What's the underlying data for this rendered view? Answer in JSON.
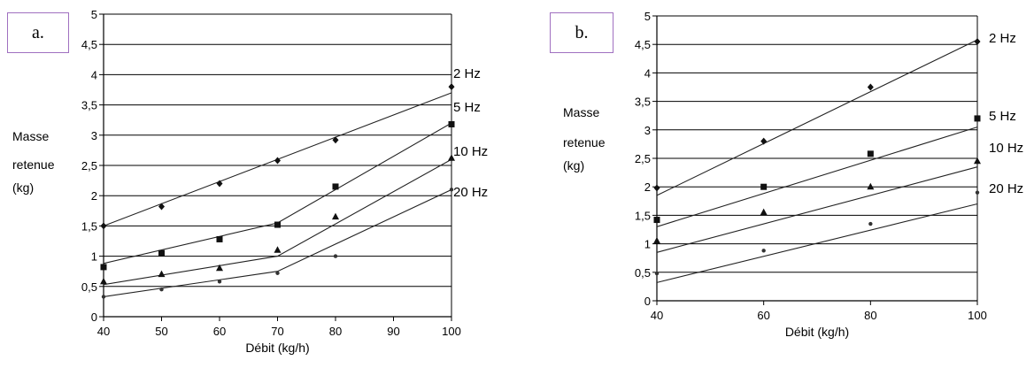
{
  "chart_data": [
    {
      "panel_label": "a.",
      "type": "line",
      "ylabel_lines": [
        "Masse",
        "retenue",
        "(kg)"
      ],
      "xlabel": "Débit (kg/h)",
      "xlim": [
        40,
        100
      ],
      "ylim": [
        0,
        5
      ],
      "xticks": [
        "40",
        "50",
        "60",
        "70",
        "80",
        "90",
        "100"
      ],
      "yticks": [
        "0",
        "0,5",
        "1",
        "1,5",
        "2",
        "2,5",
        "3",
        "3,5",
        "4",
        "4,5",
        "5"
      ],
      "grid": "horizontal",
      "series": [
        {
          "name": "2 Hz",
          "marker": "diamond",
          "points": [
            [
              40,
              1.5
            ],
            [
              50,
              1.82
            ],
            [
              60,
              2.2
            ],
            [
              70,
              2.58
            ],
            [
              80,
              2.92
            ],
            [
              100,
              3.8
            ]
          ],
          "fit": [
            [
              40,
              1.5
            ],
            [
              100,
              3.7
            ]
          ]
        },
        {
          "name": "5 Hz",
          "marker": "square",
          "points": [
            [
              40,
              0.82
            ],
            [
              50,
              1.05
            ],
            [
              60,
              1.28
            ],
            [
              70,
              1.52
            ],
            [
              80,
              2.15
            ],
            [
              100,
              3.18
            ]
          ],
          "fit": [
            [
              40,
              0.88
            ],
            [
              70,
              1.55
            ],
            [
              100,
              3.2
            ]
          ]
        },
        {
          "name": "10 Hz",
          "marker": "triangle",
          "points": [
            [
              40,
              0.58
            ],
            [
              50,
              0.7
            ],
            [
              60,
              0.8
            ],
            [
              70,
              1.1
            ],
            [
              80,
              1.65
            ],
            [
              100,
              2.62
            ]
          ],
          "fit": [
            [
              40,
              0.53
            ],
            [
              70,
              1.0
            ],
            [
              100,
              2.6
            ]
          ]
        },
        {
          "name": "20 Hz",
          "marker": "dot",
          "points": [
            [
              40,
              0.33
            ],
            [
              50,
              0.45
            ],
            [
              60,
              0.58
            ],
            [
              70,
              0.72
            ],
            [
              80,
              1.0
            ],
            [
              100,
              2.1
            ]
          ],
          "fit": [
            [
              40,
              0.33
            ],
            [
              70,
              0.75
            ],
            [
              100,
              2.1
            ]
          ]
        }
      ]
    },
    {
      "panel_label": "b.",
      "type": "line",
      "ylabel_lines": [
        "Masse",
        "retenue",
        "(kg)"
      ],
      "xlabel": "Débit (kg/h)",
      "xlim": [
        40,
        100
      ],
      "ylim": [
        0,
        5
      ],
      "xticks": [
        "40",
        "60",
        "80",
        "100"
      ],
      "yticks": [
        "0",
        "0,5",
        "1",
        "1,5",
        "2",
        "2,5",
        "3",
        "3,5",
        "4",
        "4,5",
        "5"
      ],
      "grid": "horizontal",
      "series": [
        {
          "name": "2 Hz",
          "marker": "diamond",
          "points": [
            [
              40,
              1.98
            ],
            [
              60,
              2.8
            ],
            [
              80,
              3.75
            ],
            [
              100,
              4.55
            ]
          ],
          "fit": [
            [
              40,
              1.85
            ],
            [
              100,
              4.58
            ]
          ]
        },
        {
          "name": "5 Hz",
          "marker": "square",
          "points": [
            [
              40,
              1.42
            ],
            [
              60,
              2.0
            ],
            [
              80,
              2.58
            ],
            [
              100,
              3.2
            ]
          ],
          "fit": [
            [
              40,
              1.3
            ],
            [
              100,
              3.05
            ]
          ]
        },
        {
          "name": "10 Hz",
          "marker": "triangle",
          "points": [
            [
              40,
              1.05
            ],
            [
              60,
              1.55
            ],
            [
              80,
              2.0
            ],
            [
              100,
              2.45
            ]
          ],
          "fit": [
            [
              40,
              0.85
            ],
            [
              100,
              2.35
            ]
          ]
        },
        {
          "name": "20 Hz",
          "marker": "dot",
          "points": [
            [
              40,
              0.48
            ],
            [
              60,
              0.88
            ],
            [
              80,
              1.35
            ],
            [
              100,
              1.9
            ]
          ],
          "fit": [
            [
              40,
              0.32
            ],
            [
              100,
              1.7
            ]
          ]
        }
      ]
    }
  ]
}
